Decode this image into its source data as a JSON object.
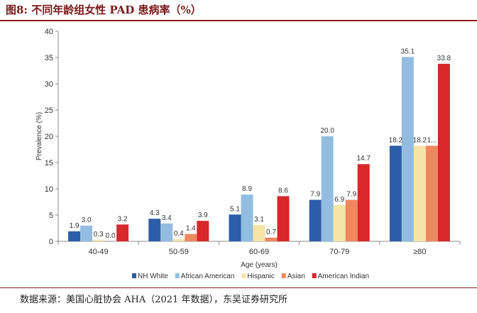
{
  "figure": {
    "title": "图8:  不同年龄组女性 PAD 患病率（%）",
    "source": "数据来源：美国心脏协会 AHA（2021 年数据），东吴证券研究所"
  },
  "chart_data": {
    "type": "bar",
    "title": "",
    "xlabel": "Age (years)",
    "ylabel": "Prevalence (%)",
    "ylim": [
      0,
      40
    ],
    "yticks": [
      0,
      5,
      10,
      15,
      20,
      25,
      30,
      35,
      40
    ],
    "categories": [
      "40-49",
      "50-59",
      "60-69",
      "70-79",
      "≥80"
    ],
    "series": [
      {
        "name": "NH White",
        "color": "#2b5ea8",
        "values": [
          1.9,
          4.3,
          5.1,
          7.9,
          18.2
        ],
        "labels": [
          "1.9",
          "4.3",
          "5.1",
          "7.9",
          "18.2"
        ]
      },
      {
        "name": "African American",
        "color": "#92bde0",
        "values": [
          3.0,
          3.4,
          8.9,
          20.0,
          35.1
        ],
        "labels": [
          "3.0",
          "3.4",
          "8.9",
          "20.0",
          "35.1"
        ]
      },
      {
        "name": "Hispanic",
        "color": "#f6e4a6",
        "values": [
          0.3,
          0.4,
          3.1,
          6.9,
          18.2
        ],
        "labels": [
          "0.3",
          "0.4",
          "3.1",
          "6.9",
          "18.2"
        ]
      },
      {
        "name": "Asian",
        "color": "#f0875e",
        "values": [
          0.0,
          1.4,
          0.7,
          7.9,
          18.2
        ],
        "labels": [
          "0.0",
          "1.4",
          "0.7",
          "7.9",
          "1..."
        ]
      },
      {
        "name": "American Indian",
        "color": "#d8282a",
        "values": [
          3.2,
          3.9,
          8.6,
          14.7,
          33.8
        ],
        "labels": [
          "3.2",
          "3.9",
          "8.6",
          "14.7",
          "33.8"
        ]
      }
    ],
    "legend_position": "bottom",
    "grid": false
  }
}
